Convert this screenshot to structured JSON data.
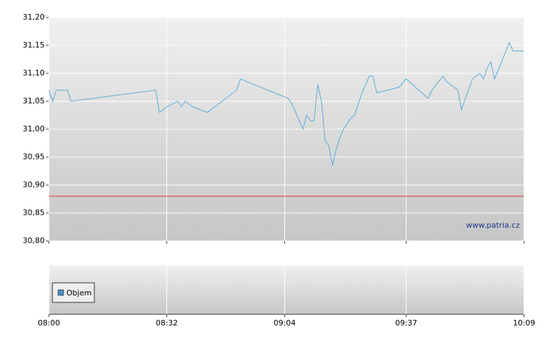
{
  "chart_data": {
    "type": "line",
    "x": [
      "08:00",
      "08:01",
      "08:02",
      "08:05",
      "08:06",
      "08:29",
      "08:30",
      "08:32",
      "08:35",
      "08:36",
      "08:37",
      "08:39",
      "08:43",
      "08:51",
      "08:52",
      "09:05",
      "09:06",
      "09:09",
      "09:10",
      "09:11",
      "09:12",
      "09:13",
      "09:14",
      "09:15",
      "09:16",
      "09:17",
      "09:18",
      "09:19",
      "09:20",
      "09:21",
      "09:22",
      "09:23",
      "09:24",
      "09:25",
      "09:26",
      "09:27",
      "09:28",
      "09:29",
      "09:35",
      "09:37",
      "09:43",
      "09:44",
      "09:47",
      "09:48",
      "09:51",
      "09:52",
      "09:55",
      "09:57",
      "09:58",
      "09:59",
      "10:00",
      "10:01",
      "10:05",
      "10:06",
      "10:09"
    ],
    "values": [
      31.07,
      31.05,
      31.07,
      31.07,
      31.05,
      31.07,
      31.03,
      31.04,
      31.05,
      31.04,
      31.05,
      31.04,
      31.03,
      31.07,
      31.09,
      31.055,
      31.045,
      31.0,
      31.025,
      31.015,
      31.015,
      31.08,
      31.05,
      30.98,
      30.97,
      30.935,
      30.965,
      30.985,
      31.0,
      31.01,
      31.02,
      31.025,
      31.045,
      31.065,
      31.08,
      31.095,
      31.095,
      31.065,
      31.075,
      31.09,
      31.055,
      31.07,
      31.095,
      31.085,
      31.07,
      31.035,
      31.09,
      31.1,
      31.09,
      31.11,
      31.12,
      31.09,
      31.155,
      31.14,
      31.14
    ],
    "color": "#5aa9d6",
    "reference_line": 30.88,
    "reference_color": "#e03030",
    "xlim": [
      "08:00",
      "10:09"
    ],
    "xticks": [
      "08:00",
      "08:32",
      "09:04",
      "09:37",
      "10:09"
    ],
    "ylim": [
      30.8,
      31.2
    ],
    "yticks": [
      {
        "value": 30.8,
        "label": "30,80"
      },
      {
        "value": 30.85,
        "label": "30,85"
      },
      {
        "value": 30.9,
        "label": "30,90"
      },
      {
        "value": 30.95,
        "label": "30,95"
      },
      {
        "value": 31.0,
        "label": "31,00"
      },
      {
        "value": 31.05,
        "label": "31,05"
      },
      {
        "value": 31.1,
        "label": "31,10"
      },
      {
        "value": 31.15,
        "label": "31,15"
      },
      {
        "value": 31.2,
        "label": "31,20"
      }
    ],
    "grid": true,
    "watermark": "www.patria.cz",
    "volume": {
      "name": "Objem",
      "color": "#4f8fc0"
    }
  }
}
